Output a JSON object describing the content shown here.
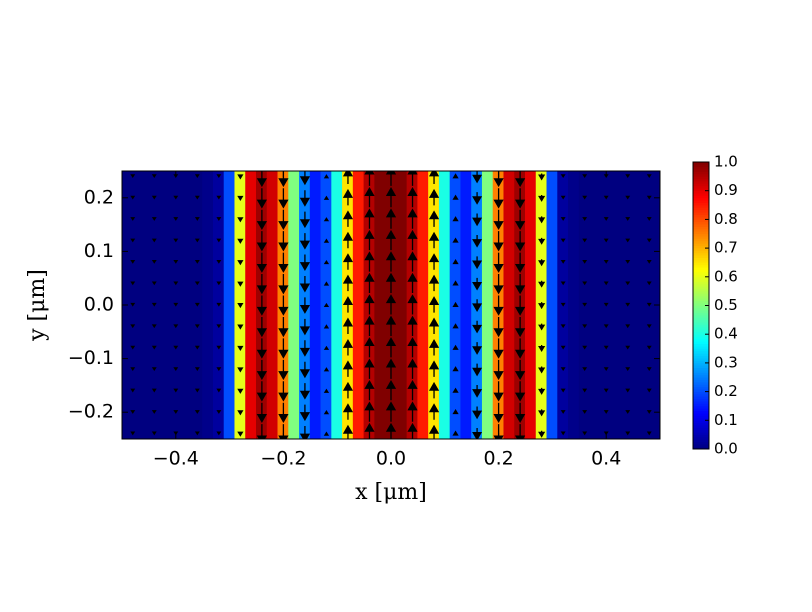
{
  "chart_data": {
    "type": "field-map",
    "xlabel": "x [μm]",
    "ylabel": "y [μm]",
    "xlim": [
      -0.5,
      0.5
    ],
    "ylim": [
      -0.25,
      0.25
    ],
    "xticks": [
      {
        "value": -0.4,
        "label": "−0.4"
      },
      {
        "value": -0.2,
        "label": "−0.2"
      },
      {
        "value": 0,
        "label": "0.0"
      },
      {
        "value": 0.2,
        "label": "0.2"
      },
      {
        "value": 0.4,
        "label": "0.4"
      }
    ],
    "yticks": [
      {
        "value": -0.2,
        "label": "−0.2"
      },
      {
        "value": -0.1,
        "label": "−0.1"
      },
      {
        "value": 0,
        "label": "0.0"
      },
      {
        "value": 0.1,
        "label": "0.1"
      },
      {
        "value": 0.2,
        "label": "0.2"
      }
    ],
    "colormap": "jet",
    "clim": [
      0,
      1
    ],
    "cticks": [
      {
        "value": 0,
        "label": "0.0"
      },
      {
        "value": 0.1,
        "label": "0.1"
      },
      {
        "value": 0.2,
        "label": "0.2"
      },
      {
        "value": 0.3,
        "label": "0.3"
      },
      {
        "value": 0.4,
        "label": "0.4"
      },
      {
        "value": 0.5,
        "label": "0.5"
      },
      {
        "value": 0.6,
        "label": "0.6"
      },
      {
        "value": 0.7,
        "label": "0.7"
      },
      {
        "value": 0.8,
        "label": "0.8"
      },
      {
        "value": 0.9,
        "label": "0.9"
      },
      {
        "value": 1,
        "label": "1.0"
      }
    ],
    "x": [
      -0.5,
      -0.48,
      -0.46,
      -0.44,
      -0.42,
      -0.4,
      -0.38,
      -0.36,
      -0.34,
      -0.32,
      -0.3,
      -0.28,
      -0.26,
      -0.24,
      -0.22,
      -0.2,
      -0.18,
      -0.16,
      -0.14,
      -0.12,
      -0.1,
      -0.08,
      -0.06,
      -0.04,
      -0.02,
      0,
      0.02,
      0.04,
      0.06,
      0.08,
      0.1,
      0.12,
      0.14,
      0.16,
      0.18,
      0.2,
      0.22,
      0.24,
      0.26,
      0.28,
      0.3,
      0.32,
      0.34,
      0.36,
      0.38,
      0.4,
      0.42,
      0.44,
      0.46,
      0.48,
      0.5
    ],
    "values": [
      0,
      0,
      0,
      0,
      0,
      0,
      0,
      0,
      0.01,
      0.03,
      0.2,
      0.6,
      0.9,
      0.97,
      0.92,
      0.75,
      0.5,
      0.25,
      0.15,
      0.2,
      0.4,
      0.65,
      0.85,
      0.95,
      1,
      1,
      1,
      0.95,
      0.85,
      0.65,
      0.4,
      0.2,
      0.15,
      0.25,
      0.5,
      0.75,
      0.92,
      0.97,
      0.9,
      0.6,
      0.2,
      0.03,
      0.01,
      0,
      0,
      0,
      0,
      0,
      0,
      0,
      0
    ],
    "quiver": {
      "color": "#000000",
      "x": [
        -0.48,
        -0.44,
        -0.4,
        -0.36,
        -0.32,
        -0.28,
        -0.24,
        -0.2,
        -0.16,
        -0.12,
        -0.08,
        -0.04,
        0,
        0.04,
        0.08,
        0.12,
        0.16,
        0.2,
        0.24,
        0.28,
        0.32,
        0.36,
        0.4,
        0.44,
        0.48
      ],
      "y": [
        -0.24,
        -0.2,
        -0.16,
        -0.12,
        -0.08,
        -0.04,
        0,
        0.04,
        0.08,
        0.12,
        0.16,
        0.2,
        0.24
      ],
      "v": [
        -0.05,
        -0.05,
        -0.05,
        -0.05,
        -0.05,
        -0.2,
        -1,
        -1,
        -0.8,
        0.1,
        0.8,
        1,
        1,
        1,
        0.8,
        0.2,
        -0.6,
        -1,
        -1,
        -0.3,
        -0.05,
        -0.05,
        -0.05,
        -0.05,
        -0.05
      ]
    }
  }
}
